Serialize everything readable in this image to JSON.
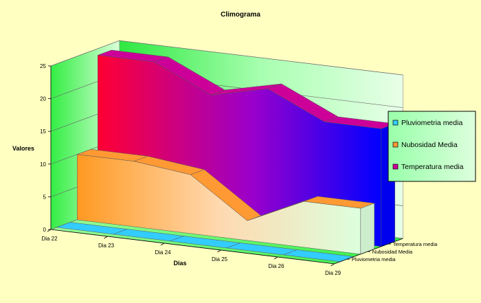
{
  "chart_data": {
    "type": "area",
    "title": "Climograma",
    "xlabel": "Dias",
    "ylabel": "Valores",
    "ylim": [
      0,
      25
    ],
    "yticks": [
      0,
      5,
      10,
      15,
      20,
      25
    ],
    "categories": [
      "Dia 22",
      "Dia 23",
      "Dia 24",
      "Dia 25",
      "Dia 26",
      "Dia 29"
    ],
    "series": [
      {
        "name": "Pluviometria media",
        "values": [
          0,
          0,
          0,
          0,
          0,
          0
        ],
        "color": "#33ccff"
      },
      {
        "name": "Nubosidad Media",
        "values": [
          10,
          10,
          9,
          3,
          7,
          7
        ],
        "color": "#ff9933"
      },
      {
        "name": "Temperatura media",
        "values": [
          24,
          24,
          20,
          22,
          18,
          18
        ],
        "color": "#cc0099"
      }
    ],
    "grid": true,
    "legend": "right"
  }
}
